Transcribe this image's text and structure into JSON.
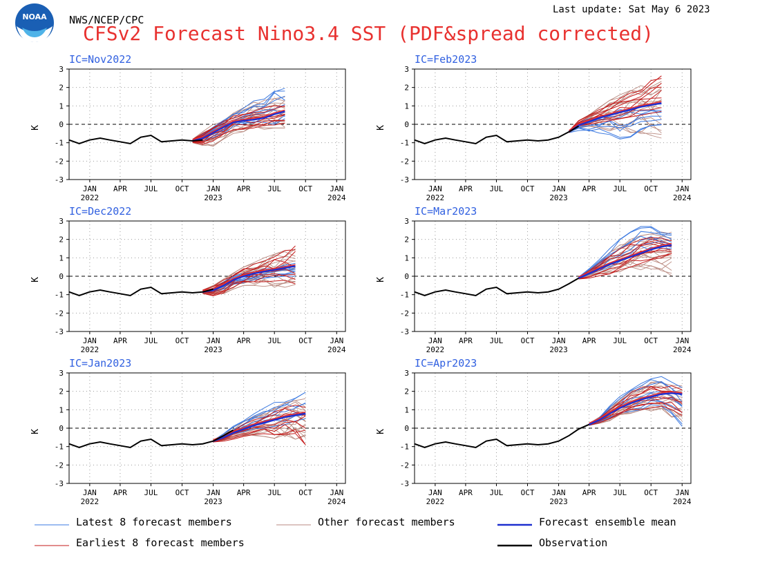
{
  "header": {
    "org": "NWS/NCEP/CPC",
    "last_update": "Last update: Sat May 6 2023",
    "title": "CFSv2 Forecast Nino3.4 SST (PDF&spread corrected)",
    "logo_text": "NOAA"
  },
  "colors": {
    "title": "#e8312f",
    "panel_title": "#2f5fe0",
    "latest": "#3a78e0",
    "other": "#b98a80",
    "earliest": "#c41a1a",
    "mean": "#1d2fcf",
    "mean_highlight": "#e8312f",
    "observation": "#000000"
  },
  "legend": [
    {
      "label": "Latest 8 forecast members",
      "color": "#3a78e0",
      "width": 1
    },
    {
      "label": "Other forecast members",
      "color": "#b98a80",
      "width": 1
    },
    {
      "label": "Forecast ensemble mean",
      "color": "#1d2fcf",
      "width": 2.5
    },
    {
      "label": "Earliest 8 forecast members",
      "color": "#c41a1a",
      "width": 1
    },
    {
      "label": "Observation",
      "color": "#000000",
      "width": 2.5
    }
  ],
  "chart_data": [
    {
      "type": "line",
      "title": "IC=Nov2022",
      "ylabel": "K",
      "ylim": [
        -3,
        3
      ],
      "yticks": [
        -3,
        -2,
        -1,
        0,
        1,
        2,
        3
      ],
      "xlim": [
        "2021-11-15",
        "2024-02-10"
      ],
      "xticks": [
        "JAN",
        "APR",
        "JUL",
        "OCT",
        "JAN",
        "APR",
        "JUL",
        "OCT",
        "JAN"
      ],
      "xtick_years": [
        "2022",
        "",
        "",
        "",
        "2023",
        "",
        "",
        "",
        "2024"
      ],
      "grid": "dotted",
      "reference_line": 0,
      "observation": {
        "x": [
          "2021-11",
          "2021-12",
          "2022-01",
          "2022-02",
          "2022-03",
          "2022-04",
          "2022-05",
          "2022-06",
          "2022-07",
          "2022-08",
          "2022-09",
          "2022-10",
          "2022-11",
          "2022-12"
        ],
        "y": [
          -0.85,
          -1.05,
          -0.85,
          -0.75,
          -0.85,
          -0.95,
          -1.05,
          -0.7,
          -0.6,
          -0.95,
          -0.9,
          -0.85,
          -0.9,
          -0.85
        ]
      },
      "forecast": {
        "x": [
          "2022-11",
          "2022-12",
          "2023-01",
          "2023-02",
          "2023-03",
          "2023-04",
          "2023-05",
          "2023-06",
          "2023-07",
          "2023-08"
        ],
        "mean": [
          -0.9,
          -0.75,
          -0.45,
          -0.15,
          0.1,
          0.2,
          0.25,
          0.35,
          0.55,
          0.7
        ],
        "latest_low": [
          -0.95,
          -0.9,
          -0.7,
          -0.5,
          -0.2,
          -0.1,
          0.0,
          0.05,
          0.0,
          0.0
        ],
        "latest_high": [
          -0.85,
          -0.55,
          -0.15,
          0.25,
          0.55,
          0.95,
          1.35,
          1.6,
          2.0,
          2.1
        ],
        "other_low": [
          -1.0,
          -1.15,
          -1.2,
          -0.8,
          -0.5,
          -0.4,
          -0.3,
          -0.3,
          -0.2,
          -0.2
        ],
        "other_high": [
          -0.8,
          -0.4,
          0.0,
          0.3,
          0.6,
          0.9,
          1.2,
          1.3,
          1.4,
          1.5
        ],
        "earliest_low": [
          -1.0,
          -1.1,
          -0.9,
          -0.6,
          -0.35,
          -0.25,
          -0.2,
          -0.1,
          -0.1,
          -0.1
        ],
        "earliest_high": [
          -0.8,
          -0.5,
          -0.1,
          0.2,
          0.45,
          0.6,
          0.7,
          0.9,
          1.0,
          1.1
        ]
      }
    },
    {
      "type": "line",
      "title": "IC=Feb2023",
      "ylabel": "K",
      "ylim": [
        -3,
        3
      ],
      "yticks": [
        -3,
        -2,
        -1,
        0,
        1,
        2,
        3
      ],
      "xlim": [
        "2021-11-15",
        "2024-02-10"
      ],
      "xticks": [
        "JAN",
        "APR",
        "JUL",
        "OCT",
        "JAN",
        "APR",
        "JUL",
        "OCT",
        "JAN"
      ],
      "xtick_years": [
        "2022",
        "",
        "",
        "",
        "2023",
        "",
        "",
        "",
        "2024"
      ],
      "grid": "dotted",
      "reference_line": 0,
      "observation": {
        "x": [
          "2021-11",
          "2021-12",
          "2022-01",
          "2022-02",
          "2022-03",
          "2022-04",
          "2022-05",
          "2022-06",
          "2022-07",
          "2022-08",
          "2022-09",
          "2022-10",
          "2022-11",
          "2022-12",
          "2023-01",
          "2023-02",
          "2023-03"
        ],
        "y": [
          -0.85,
          -1.05,
          -0.85,
          -0.75,
          -0.85,
          -0.95,
          -1.05,
          -0.7,
          -0.6,
          -0.95,
          -0.9,
          -0.85,
          -0.9,
          -0.85,
          -0.7,
          -0.4,
          -0.1
        ]
      },
      "forecast": {
        "x": [
          "2023-02",
          "2023-03",
          "2023-04",
          "2023-05",
          "2023-06",
          "2023-07",
          "2023-08",
          "2023-09",
          "2023-10",
          "2023-11"
        ],
        "mean": [
          -0.4,
          -0.05,
          0.15,
          0.35,
          0.5,
          0.65,
          0.8,
          0.95,
          1.05,
          1.15
        ],
        "latest_low": [
          -0.45,
          -0.35,
          -0.4,
          -0.5,
          -0.6,
          -0.8,
          -0.7,
          -0.3,
          -0.2,
          -0.1
        ],
        "latest_high": [
          -0.35,
          0.1,
          0.3,
          0.5,
          0.7,
          0.8,
          0.9,
          1.0,
          1.1,
          1.1
        ],
        "other_low": [
          -0.45,
          -0.2,
          -0.15,
          -0.2,
          -0.35,
          -0.4,
          -0.45,
          -0.5,
          -0.6,
          -0.75
        ],
        "other_high": [
          -0.35,
          0.2,
          0.6,
          1.0,
          1.3,
          1.6,
          1.9,
          2.1,
          2.3,
          2.5
        ],
        "earliest_low": [
          -0.45,
          -0.1,
          0.0,
          0.1,
          0.2,
          0.3,
          0.4,
          0.5,
          0.6,
          0.7
        ],
        "earliest_high": [
          -0.35,
          0.2,
          0.5,
          0.8,
          1.1,
          1.4,
          1.7,
          2.0,
          2.5,
          2.7
        ]
      }
    },
    {
      "type": "line",
      "title": "IC=Dec2022",
      "ylabel": "K",
      "ylim": [
        -3,
        3
      ],
      "yticks": [
        -3,
        -2,
        -1,
        0,
        1,
        2,
        3
      ],
      "xlim": [
        "2021-11-15",
        "2024-02-10"
      ],
      "xticks": [
        "JAN",
        "APR",
        "JUL",
        "OCT",
        "JAN",
        "APR",
        "JUL",
        "OCT",
        "JAN"
      ],
      "xtick_years": [
        "2022",
        "",
        "",
        "",
        "2023",
        "",
        "",
        "",
        "2024"
      ],
      "grid": "dotted",
      "reference_line": 0,
      "observation": {
        "x": [
          "2021-11",
          "2021-12",
          "2022-01",
          "2022-02",
          "2022-03",
          "2022-04",
          "2022-05",
          "2022-06",
          "2022-07",
          "2022-08",
          "2022-09",
          "2022-10",
          "2022-11",
          "2022-12",
          "2023-01"
        ],
        "y": [
          -0.85,
          -1.05,
          -0.85,
          -0.75,
          -0.85,
          -0.95,
          -1.05,
          -0.7,
          -0.6,
          -0.95,
          -0.9,
          -0.85,
          -0.9,
          -0.85,
          -0.7
        ]
      },
      "forecast": {
        "x": [
          "2022-12",
          "2023-01",
          "2023-02",
          "2023-03",
          "2023-04",
          "2023-05",
          "2023-06",
          "2023-07",
          "2023-08",
          "2023-09"
        ],
        "mean": [
          -0.85,
          -0.75,
          -0.5,
          -0.2,
          0.0,
          0.15,
          0.25,
          0.35,
          0.45,
          0.55
        ],
        "latest_low": [
          -0.9,
          -0.85,
          -0.7,
          -0.5,
          -0.35,
          -0.2,
          -0.1,
          -0.05,
          0.0,
          0.0
        ],
        "latest_high": [
          -0.8,
          -0.65,
          -0.3,
          0.0,
          0.15,
          0.3,
          0.4,
          0.5,
          0.6,
          0.7
        ],
        "other_low": [
          -0.95,
          -1.0,
          -0.95,
          -0.7,
          -0.5,
          -0.5,
          -0.55,
          -0.6,
          -0.6,
          -0.5
        ],
        "other_high": [
          -0.75,
          -0.5,
          -0.15,
          0.2,
          0.5,
          0.75,
          1.0,
          1.2,
          1.4,
          1.5
        ],
        "earliest_low": [
          -0.95,
          -1.1,
          -0.9,
          -0.6,
          -0.4,
          -0.3,
          -0.3,
          -0.35,
          -0.4,
          -0.5
        ],
        "earliest_high": [
          -0.75,
          -0.55,
          -0.2,
          0.1,
          0.4,
          0.65,
          0.9,
          1.1,
          1.4,
          1.65
        ]
      }
    },
    {
      "type": "line",
      "title": "IC=Mar2023",
      "ylabel": "K",
      "ylim": [
        -3,
        3
      ],
      "yticks": [
        -3,
        -2,
        -1,
        0,
        1,
        2,
        3
      ],
      "xlim": [
        "2021-11-15",
        "2024-02-10"
      ],
      "xticks": [
        "JAN",
        "APR",
        "JUL",
        "OCT",
        "JAN",
        "APR",
        "JUL",
        "OCT",
        "JAN"
      ],
      "xtick_years": [
        "2022",
        "",
        "",
        "",
        "2023",
        "",
        "",
        "",
        "2024"
      ],
      "grid": "dotted",
      "reference_line": 0,
      "observation": {
        "x": [
          "2021-11",
          "2021-12",
          "2022-01",
          "2022-02",
          "2022-03",
          "2022-04",
          "2022-05",
          "2022-06",
          "2022-07",
          "2022-08",
          "2022-09",
          "2022-10",
          "2022-11",
          "2022-12",
          "2023-01",
          "2023-02",
          "2023-03"
        ],
        "y": [
          -0.85,
          -1.05,
          -0.85,
          -0.75,
          -0.85,
          -0.95,
          -1.05,
          -0.7,
          -0.6,
          -0.95,
          -0.9,
          -0.85,
          -0.9,
          -0.85,
          -0.7,
          -0.4,
          -0.1
        ]
      },
      "forecast": {
        "x": [
          "2023-03",
          "2023-04",
          "2023-05",
          "2023-06",
          "2023-07",
          "2023-08",
          "2023-09",
          "2023-10",
          "2023-11",
          "2023-12"
        ],
        "mean": [
          -0.1,
          0.15,
          0.4,
          0.65,
          0.85,
          1.05,
          1.25,
          1.45,
          1.6,
          1.7
        ],
        "latest_low": [
          -0.15,
          0.1,
          0.3,
          0.5,
          0.8,
          1.0,
          1.2,
          1.4,
          1.5,
          1.5
        ],
        "latest_high": [
          -0.05,
          0.4,
          0.9,
          1.5,
          2.0,
          2.4,
          2.7,
          2.7,
          2.5,
          2.3
        ],
        "other_low": [
          -0.15,
          0.0,
          0.1,
          0.2,
          0.25,
          0.3,
          0.35,
          0.4,
          0.3,
          0.0
        ],
        "other_high": [
          -0.05,
          0.35,
          0.8,
          1.3,
          1.7,
          2.0,
          2.2,
          2.3,
          2.4,
          2.4
        ],
        "earliest_low": [
          -0.15,
          -0.1,
          0.0,
          0.1,
          0.3,
          0.5,
          0.7,
          0.9,
          1.0,
          1.1
        ],
        "earliest_high": [
          -0.05,
          0.3,
          0.7,
          1.1,
          1.5,
          1.8,
          2.0,
          2.1,
          2.1,
          2.0
        ]
      }
    },
    {
      "type": "line",
      "title": "IC=Jan2023",
      "ylabel": "K",
      "ylim": [
        -3,
        3
      ],
      "yticks": [
        -3,
        -2,
        -1,
        0,
        1,
        2,
        3
      ],
      "xlim": [
        "2021-11-15",
        "2024-02-10"
      ],
      "xticks": [
        "JAN",
        "APR",
        "JUL",
        "OCT",
        "JAN",
        "APR",
        "JUL",
        "OCT",
        "JAN"
      ],
      "xtick_years": [
        "2022",
        "",
        "",
        "",
        "2023",
        "",
        "",
        "",
        "2024"
      ],
      "grid": "dotted",
      "reference_line": 0,
      "observation": {
        "x": [
          "2021-11",
          "2021-12",
          "2022-01",
          "2022-02",
          "2022-03",
          "2022-04",
          "2022-05",
          "2022-06",
          "2022-07",
          "2022-08",
          "2022-09",
          "2022-10",
          "2022-11",
          "2022-12",
          "2023-01",
          "2023-02",
          "2023-03"
        ],
        "y": [
          -0.85,
          -1.05,
          -0.85,
          -0.75,
          -0.85,
          -0.95,
          -1.05,
          -0.7,
          -0.6,
          -0.95,
          -0.9,
          -0.85,
          -0.9,
          -0.85,
          -0.7,
          -0.4,
          -0.1
        ]
      },
      "forecast": {
        "x": [
          "2023-01",
          "2023-02",
          "2023-03",
          "2023-04",
          "2023-05",
          "2023-06",
          "2023-07",
          "2023-08",
          "2023-09",
          "2023-10"
        ],
        "mean": [
          -0.7,
          -0.5,
          -0.25,
          -0.05,
          0.15,
          0.3,
          0.45,
          0.6,
          0.7,
          0.8
        ],
        "latest_low": [
          -0.75,
          -0.6,
          -0.4,
          -0.2,
          -0.1,
          0.0,
          0.1,
          0.2,
          0.25,
          0.3
        ],
        "latest_high": [
          -0.65,
          -0.3,
          0.1,
          0.4,
          0.8,
          1.1,
          1.4,
          1.6,
          1.7,
          1.95
        ],
        "other_low": [
          -0.75,
          -0.7,
          -0.55,
          -0.45,
          -0.4,
          -0.45,
          -0.55,
          -0.6,
          -0.6,
          -0.65
        ],
        "other_high": [
          -0.65,
          -0.3,
          0.05,
          0.35,
          0.65,
          0.9,
          1.2,
          1.4,
          1.5,
          1.6
        ],
        "earliest_low": [
          -0.75,
          -0.7,
          -0.6,
          -0.45,
          -0.35,
          -0.3,
          -0.35,
          -0.45,
          -0.55,
          -0.9
        ],
        "earliest_high": [
          -0.65,
          -0.4,
          -0.1,
          0.2,
          0.45,
          0.7,
          0.9,
          1.1,
          1.25,
          1.3
        ]
      }
    },
    {
      "type": "line",
      "title": "IC=Apr2023",
      "ylabel": "K",
      "ylim": [
        -3,
        3
      ],
      "yticks": [
        -3,
        -2,
        -1,
        0,
        1,
        2,
        3
      ],
      "xlim": [
        "2021-11-15",
        "2024-02-10"
      ],
      "xticks": [
        "JAN",
        "APR",
        "JUL",
        "OCT",
        "JAN",
        "APR",
        "JUL",
        "OCT",
        "JAN"
      ],
      "xtick_years": [
        "2022",
        "",
        "",
        "",
        "2023",
        "",
        "",
        "",
        "2024"
      ],
      "grid": "dotted",
      "reference_line": 0,
      "observation": {
        "x": [
          "2021-11",
          "2021-12",
          "2022-01",
          "2022-02",
          "2022-03",
          "2022-04",
          "2022-05",
          "2022-06",
          "2022-07",
          "2022-08",
          "2022-09",
          "2022-10",
          "2022-11",
          "2022-12",
          "2023-01",
          "2023-02",
          "2023-03",
          "2023-04"
        ],
        "y": [
          -0.85,
          -1.05,
          -0.85,
          -0.75,
          -0.85,
          -0.95,
          -1.05,
          -0.7,
          -0.6,
          -0.95,
          -0.9,
          -0.85,
          -0.9,
          -0.85,
          -0.7,
          -0.4,
          -0.05,
          0.2
        ]
      },
      "forecast": {
        "x": [
          "2023-04",
          "2023-05",
          "2023-06",
          "2023-07",
          "2023-08",
          "2023-09",
          "2023-10",
          "2023-11",
          "2023-12",
          "2024-01"
        ],
        "mean": [
          0.2,
          0.45,
          0.8,
          1.1,
          1.35,
          1.55,
          1.7,
          1.85,
          1.9,
          1.85
        ],
        "latest_low": [
          0.15,
          0.3,
          0.5,
          0.7,
          0.9,
          1.0,
          1.1,
          1.0,
          0.8,
          0.0
        ],
        "latest_high": [
          0.25,
          0.6,
          1.2,
          1.8,
          2.2,
          2.5,
          2.7,
          2.8,
          2.5,
          2.2
        ],
        "other_low": [
          0.15,
          0.25,
          0.4,
          0.6,
          0.8,
          0.9,
          0.9,
          0.8,
          0.6,
          0.4
        ],
        "other_high": [
          0.25,
          0.6,
          1.1,
          1.6,
          2.0,
          2.3,
          2.5,
          2.6,
          2.5,
          2.3
        ],
        "earliest_low": [
          0.15,
          0.3,
          0.5,
          0.7,
          0.9,
          1.0,
          1.1,
          1.2,
          1.0,
          0.6
        ],
        "earliest_high": [
          0.25,
          0.55,
          1.0,
          1.5,
          1.9,
          2.2,
          2.3,
          2.3,
          2.3,
          2.2
        ]
      }
    }
  ]
}
